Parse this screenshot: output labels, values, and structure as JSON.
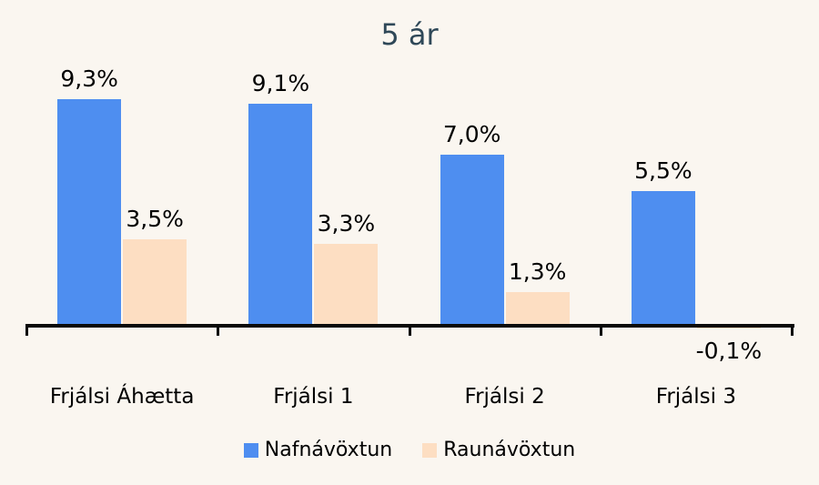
{
  "chart_data": {
    "type": "bar",
    "title": "5 ár",
    "categories": [
      "Frjálsi Áhætta",
      "Frjálsi 1",
      "Frjálsi 2",
      "Frjálsi 3"
    ],
    "series": [
      {
        "name": "Nafnávöxtun",
        "color": "#4E8EF0",
        "values": [
          9.3,
          9.1,
          7.0,
          5.5
        ],
        "labels": [
          "9,3%",
          "9,1%",
          "7,0%",
          "5,5%"
        ]
      },
      {
        "name": "Raunávöxtun",
        "color": "#FDDEC2",
        "values": [
          3.5,
          3.3,
          1.3,
          -0.1
        ],
        "labels": [
          "3,5%",
          "3,3%",
          "1,3%",
          "-0,1%"
        ]
      }
    ],
    "xlabel": "",
    "ylabel": "",
    "ylim": [
      -0.5,
      11
    ],
    "grid": false,
    "legend_position": "bottom",
    "value_label_format": "percent-comma-decimal",
    "background_color": "#FAF6F0",
    "title_color": "#2F4858",
    "axis_color": "#0A0A0A"
  }
}
